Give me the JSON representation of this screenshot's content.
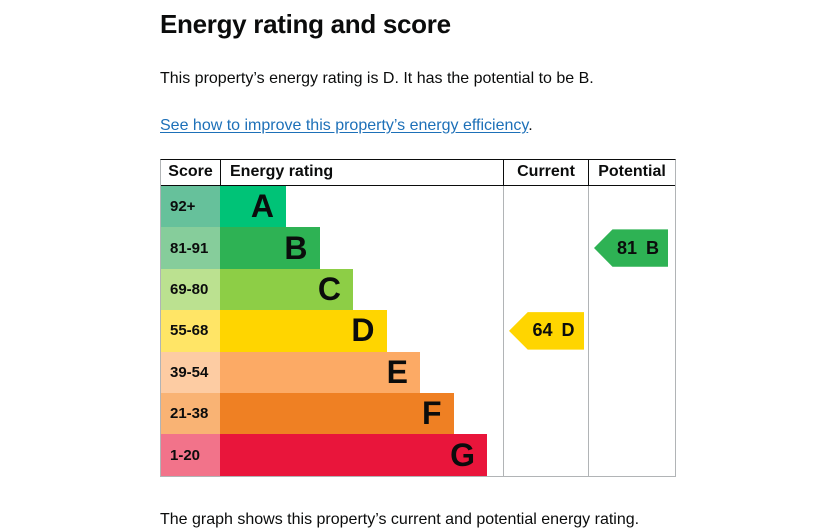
{
  "page": {
    "title": "Energy rating and score",
    "intro": "This property’s energy rating is D. It has the potential to be B.",
    "improve_link": "See how to improve this property’s energy efficiency",
    "link_suffix": ".",
    "caption": "The graph shows this property’s current and potential energy rating."
  },
  "colors": {
    "text": "#0b0c0c",
    "link": "#1d70b8",
    "grid_line": "#b1b4b6"
  },
  "chart_data": {
    "type": "table",
    "title": "Energy rating and score",
    "columns": [
      "Score",
      "Energy rating",
      "Current",
      "Potential"
    ],
    "bands": [
      {
        "score_range": "92+",
        "letter": "A",
        "bar_color": "#00c377",
        "score_bg": "#66c19b"
      },
      {
        "score_range": "81-91",
        "letter": "B",
        "bar_color": "#2eb254",
        "score_bg": "#86cd9b"
      },
      {
        "score_range": "69-80",
        "letter": "C",
        "bar_color": "#8dce46",
        "score_bg": "#bbe190"
      },
      {
        "score_range": "55-68",
        "letter": "D",
        "bar_color": "#ffd500",
        "score_bg": "#ffe566"
      },
      {
        "score_range": "39-54",
        "letter": "E",
        "bar_color": "#fcaa65",
        "score_bg": "#fdcca3"
      },
      {
        "score_range": "21-38",
        "letter": "F",
        "bar_color": "#ef8023",
        "score_bg": "#f9b374"
      },
      {
        "score_range": "1-20",
        "letter": "G",
        "bar_color": "#e9153b",
        "score_bg": "#f2738a"
      }
    ],
    "current": {
      "label": "Current",
      "score": "64",
      "band": "D"
    },
    "potential": {
      "label": "Potential",
      "score": "81",
      "band": "B"
    }
  }
}
